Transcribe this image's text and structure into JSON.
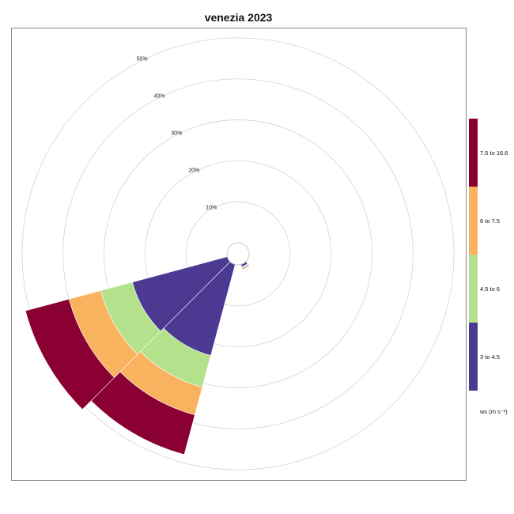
{
  "chart_data": {
    "type": "windrose",
    "title": "venezia 2023",
    "radial_ticks": [
      10,
      20,
      30,
      40,
      50
    ],
    "radial_tick_labels": [
      "10%",
      "20%",
      "30%",
      "40%",
      "50%"
    ],
    "radial_max": 55,
    "direction_bin_width_deg": 30,
    "legend": {
      "title": "ws (m s⁻¹)",
      "bins": [
        {
          "label": "3 to 4.5",
          "color": "#4B3992"
        },
        {
          "label": "4.5 to 6",
          "color": "#B4E28C"
        },
        {
          "label": "6 to 7.5",
          "color": "#F9B25E"
        },
        {
          "label": "7.5 to 16.6",
          "color": "#8A0033"
        }
      ]
    },
    "series": [
      {
        "direction_deg": 150,
        "cumulative_pct": [
          0.6,
          0.8,
          1.0,
          1.2
        ]
      },
      {
        "direction_deg": 210,
        "cumulative_pct": [
          23,
          31,
          38,
          48
        ]
      },
      {
        "direction_deg": 240,
        "cumulative_pct": [
          24,
          32,
          40,
          51
        ]
      }
    ]
  }
}
